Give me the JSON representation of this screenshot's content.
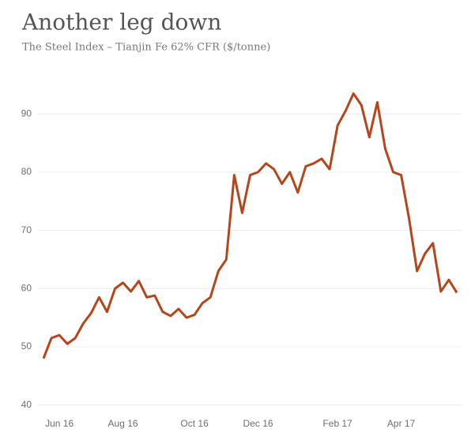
{
  "chart_data": {
    "type": "line",
    "title": "Another leg down",
    "subtitle": "The Steel Index – Tianjin Fe 62% CFR ($/tonne)",
    "categories": [
      null,
      null,
      "Jun 16",
      null,
      null,
      null,
      null,
      null,
      null,
      null,
      "Aug 16",
      null,
      null,
      null,
      null,
      null,
      null,
      null,
      null,
      "Oct 16",
      null,
      null,
      null,
      null,
      null,
      null,
      null,
      "Dec 16",
      null,
      null,
      null,
      null,
      null,
      null,
      null,
      null,
      null,
      "Feb 17",
      null,
      null,
      null,
      null,
      null,
      null,
      null,
      "Apr 17",
      null,
      null,
      null,
      null,
      null,
      null,
      null
    ],
    "series": [
      {
        "name": "The Steel Index",
        "color": "#b5451b",
        "values": [
          48,
          51.5,
          52,
          50.5,
          51.5,
          54,
          55.8,
          58.5,
          56,
          60,
          61,
          59.5,
          61.3,
          58.5,
          58.8,
          56,
          55.3,
          56.5,
          55,
          55.5,
          57.5,
          58.5,
          63,
          65,
          79.5,
          73,
          79.5,
          80,
          81.5,
          80.5,
          78,
          80,
          76.5,
          81,
          81.5,
          82.3,
          80.5,
          88,
          90.5,
          93.5,
          91.5,
          86,
          92,
          84,
          80,
          79.5,
          72,
          63,
          66,
          67.8,
          59.5,
          61.5,
          59.3
        ]
      }
    ],
    "ylim": [
      39,
      96
    ],
    "yticks": [
      40,
      50,
      60,
      70,
      80,
      90
    ],
    "grid": true
  }
}
